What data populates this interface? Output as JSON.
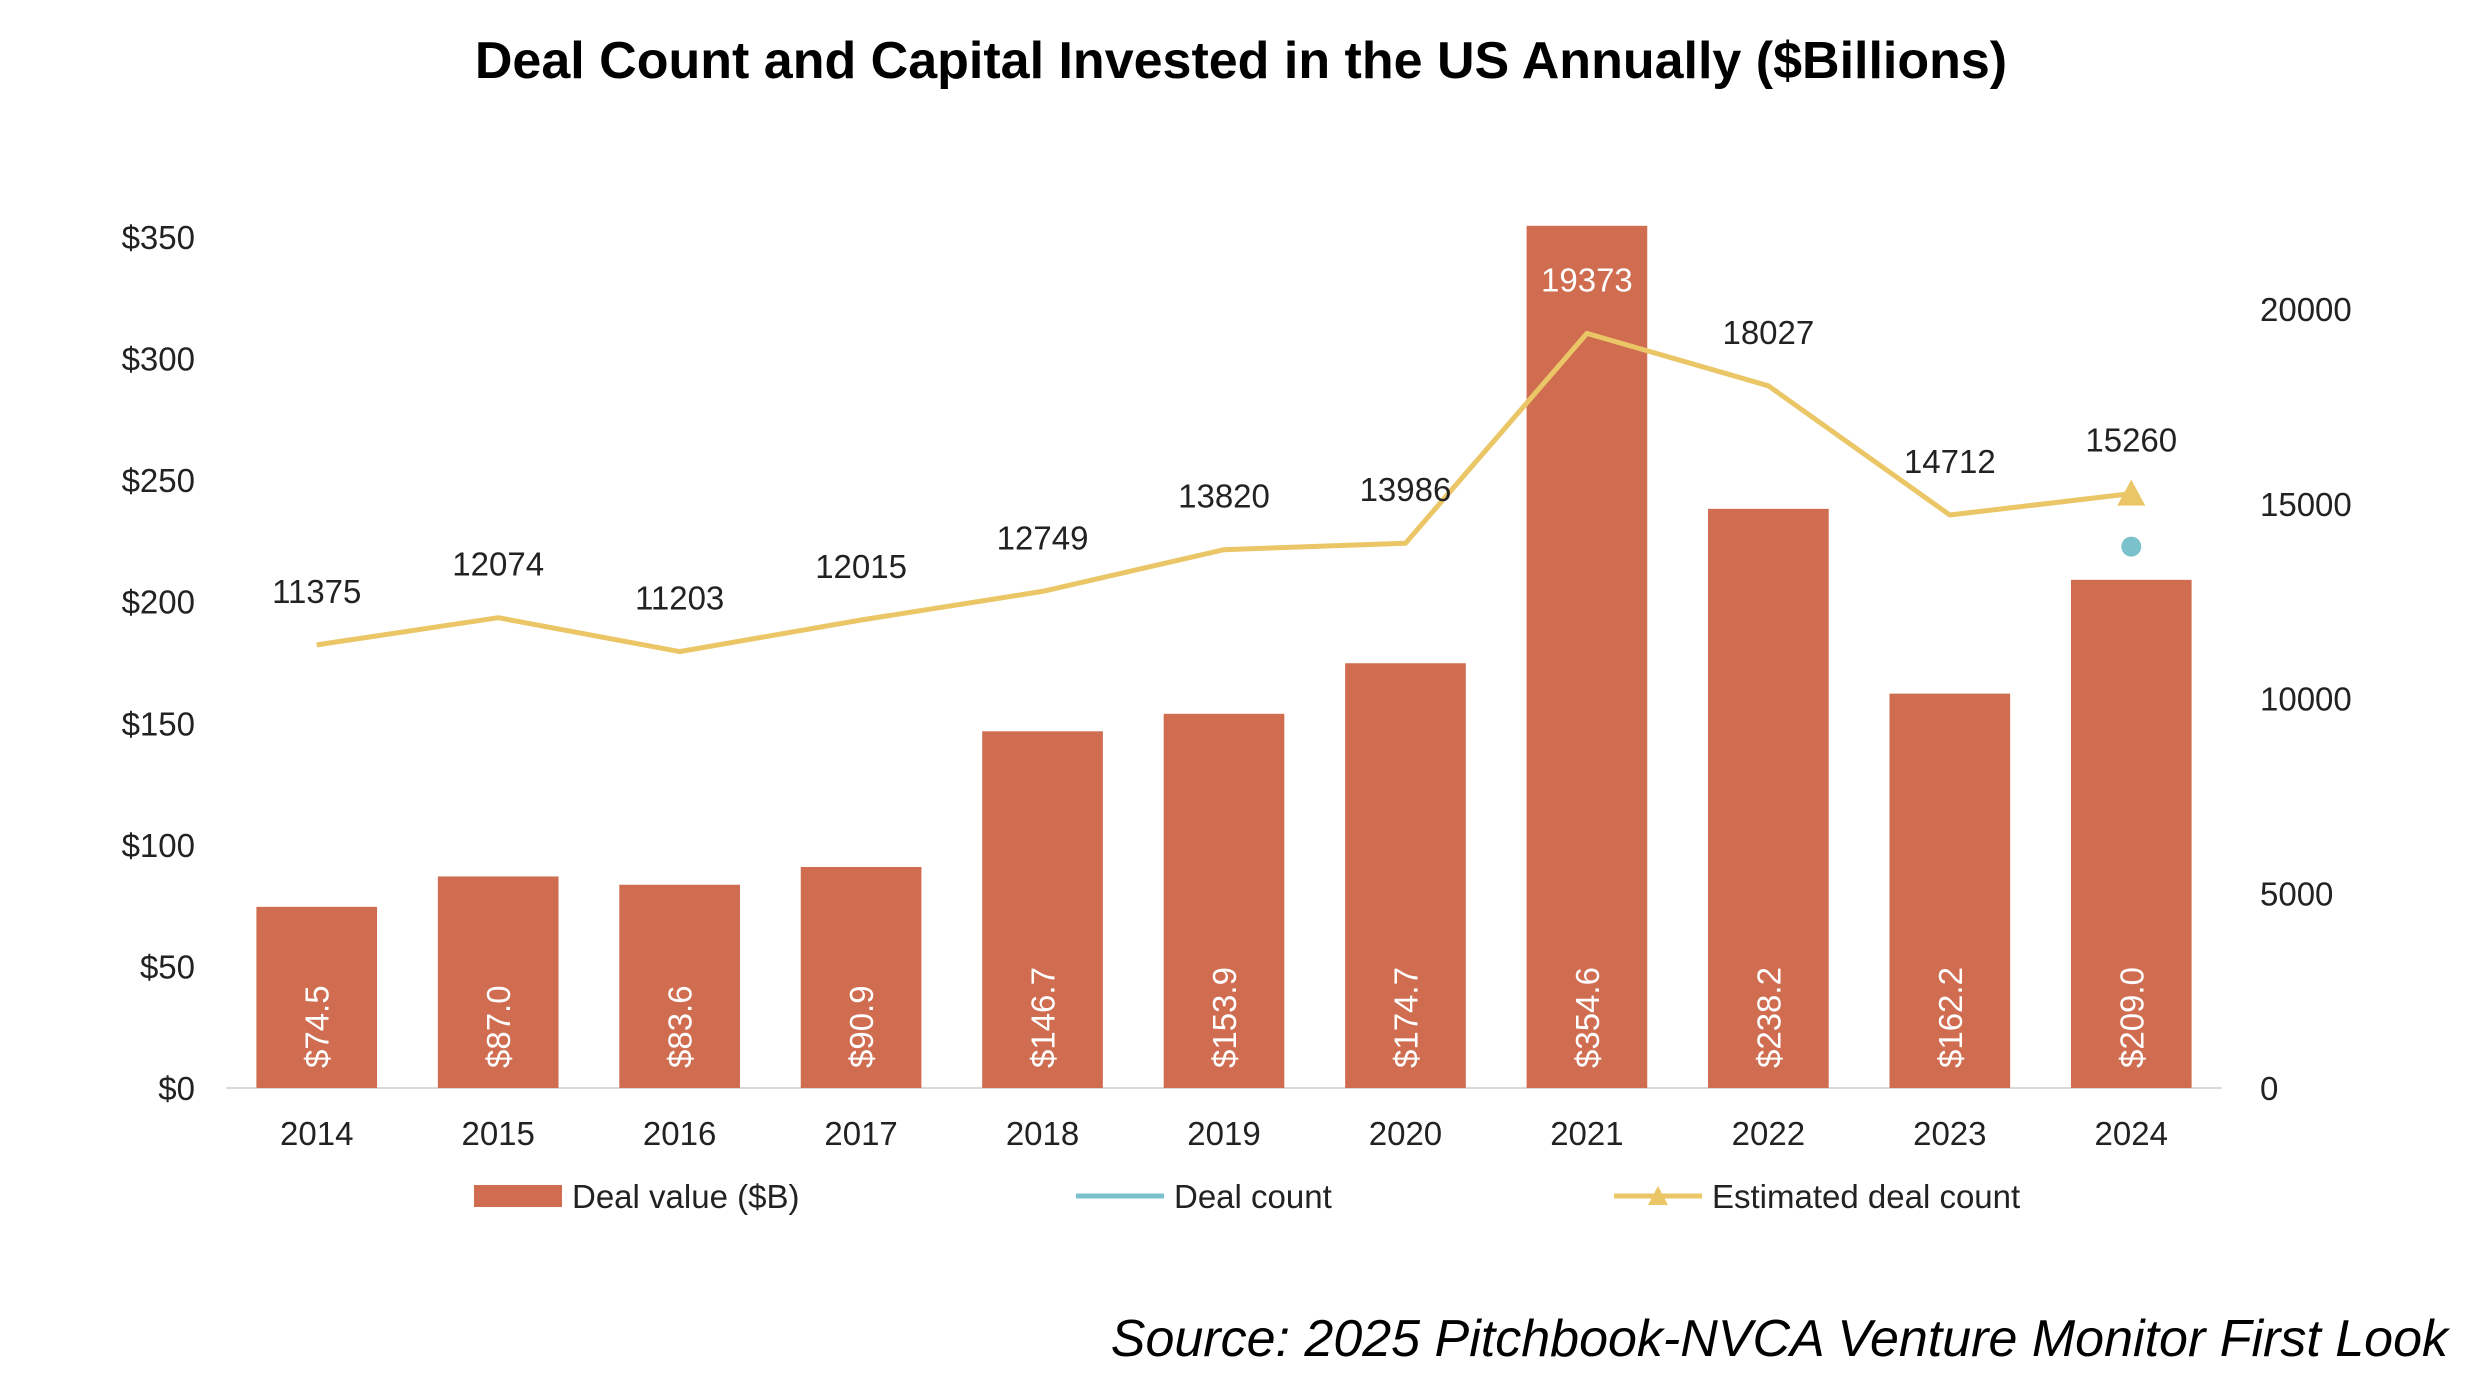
{
  "chart_data": {
    "type": "bar",
    "title": "Deal Count and Capital Invested in the US Annually ($Billions)",
    "source": "Source: 2025 Pitchbook-NVCA Venture Monitor First Look",
    "categories": [
      "2014",
      "2015",
      "2016",
      "2017",
      "2018",
      "2019",
      "2020",
      "2021",
      "2022",
      "2023",
      "2024"
    ],
    "left_axis": {
      "ylim": [
        0,
        350
      ],
      "ticks": [
        0,
        50,
        100,
        150,
        200,
        250,
        300,
        350
      ],
      "tick_labels": [
        "$0",
        "$50",
        "$100",
        "$150",
        "$200",
        "$250",
        "$300",
        "$350"
      ]
    },
    "right_axis": {
      "ylim": [
        0,
        20000
      ],
      "ticks": [
        0,
        5000,
        10000,
        15000,
        20000
      ],
      "tick_labels": [
        "0",
        "5000",
        "10000",
        "15000",
        "20000"
      ]
    },
    "series": [
      {
        "name": "Deal value ($B)",
        "type": "bar",
        "axis": "left",
        "color": "#D06C4F",
        "values": [
          74.5,
          87.0,
          83.6,
          90.9,
          146.7,
          153.9,
          174.7,
          354.6,
          238.2,
          162.2,
          209.0
        ],
        "labels": [
          "$74.5",
          "$87.0",
          "$83.6",
          "$90.9",
          "$146.7",
          "$153.9",
          "$174.7",
          "$354.6",
          "$238.2",
          "$162.2",
          "$209.0"
        ]
      },
      {
        "name": "Deal count",
        "type": "line",
        "axis": "right",
        "color": "#7BC1CC",
        "values": [
          null,
          null,
          null,
          null,
          null,
          null,
          null,
          null,
          null,
          null,
          13900
        ]
      },
      {
        "name": "Estimated deal count",
        "type": "line",
        "axis": "right",
        "color": "#EBC667",
        "values": [
          11375,
          12074,
          11203,
          12015,
          12749,
          13820,
          13986,
          19373,
          18027,
          14712,
          15260
        ],
        "labels": [
          "11375",
          "12074",
          "11203",
          "12015",
          "12749",
          "13820",
          "13986",
          "19373",
          "18027",
          "14712",
          "15260"
        ]
      }
    ],
    "grid": false,
    "legend_position": "bottom"
  }
}
